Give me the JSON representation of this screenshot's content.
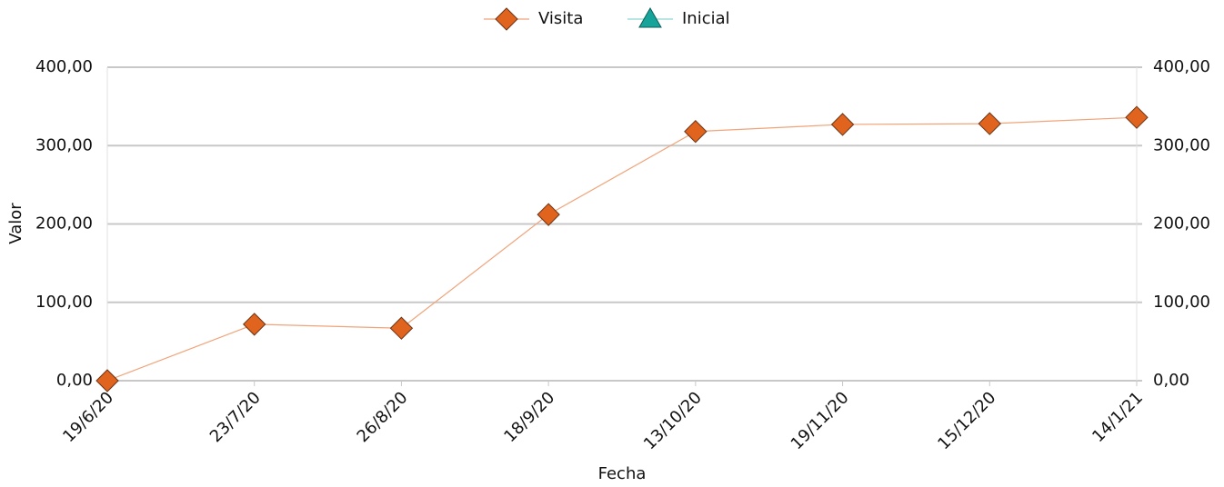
{
  "chart_data": {
    "type": "line",
    "x_label": "Fecha",
    "y_label": "Valor",
    "categories": [
      "19/6/20",
      "23/7/20",
      "26/8/20",
      "18/9/20",
      "13/10/20",
      "19/11/20",
      "15/12/20",
      "14/1/21"
    ],
    "series": [
      {
        "name": "Visita",
        "color": "#e0641e",
        "line_color": "#f0a47a",
        "marker": "diamond",
        "values": [
          0,
          72,
          67,
          212,
          318,
          327,
          328,
          336
        ]
      },
      {
        "name": "Inicial",
        "color": "#16a39a",
        "line_color": "#8fd6d1",
        "marker": "triangle",
        "values": [
          null,
          null,
          null,
          null,
          null,
          null,
          null,
          null
        ]
      }
    ],
    "ylim": [
      0,
      400
    ],
    "yticks": [
      {
        "value": 0,
        "label": "0,00"
      },
      {
        "value": 100,
        "label": "100,00"
      },
      {
        "value": 200,
        "label": "200,00"
      },
      {
        "value": 300,
        "label": "300,00"
      },
      {
        "value": 400,
        "label": "400,00"
      }
    ],
    "y2lim": [
      0,
      400
    ],
    "y2ticks": [
      {
        "value": 0,
        "label": "0,00"
      },
      {
        "value": 100,
        "label": "100,00"
      },
      {
        "value": 200,
        "label": "200,00"
      },
      {
        "value": 300,
        "label": "300,00"
      },
      {
        "value": 400,
        "label": "400,00"
      }
    ],
    "grid": true,
    "legend": "top"
  }
}
